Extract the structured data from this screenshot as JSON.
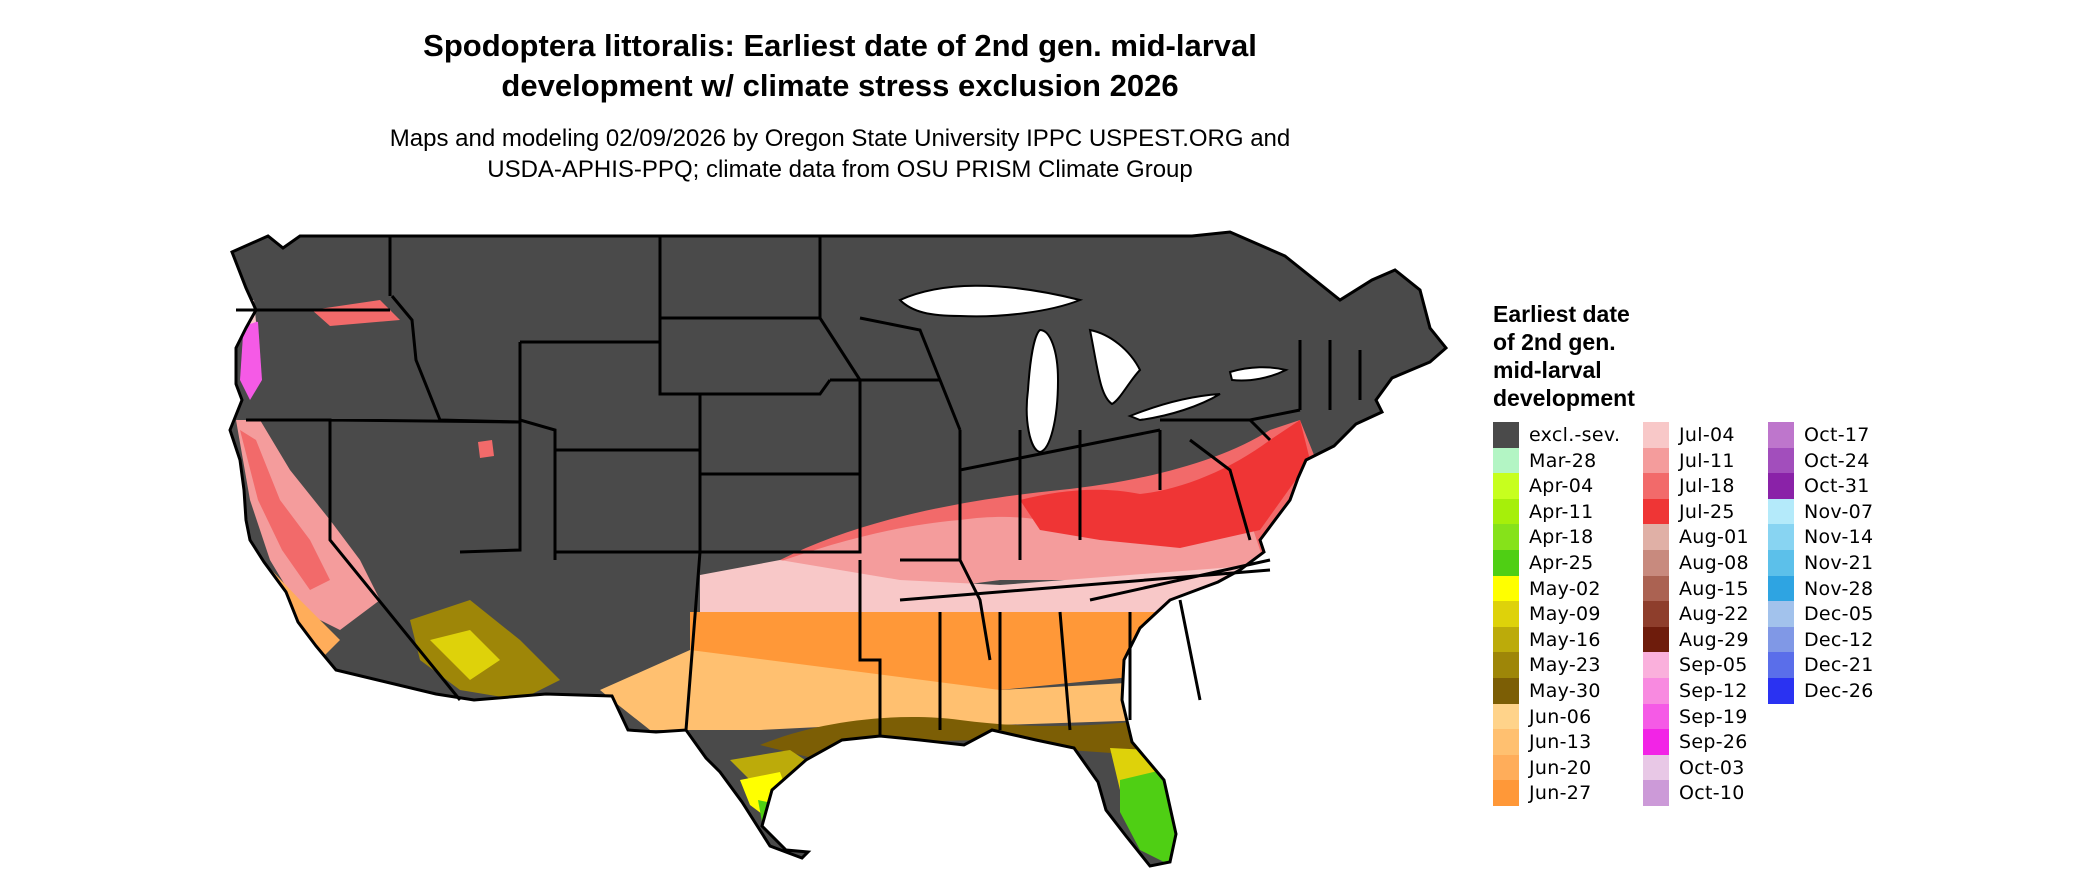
{
  "title_line1": "Spodoptera littoralis: Earliest date of 2nd gen. mid-larval",
  "title_line2": "development w/ climate stress exclusion 2026",
  "subtitle_line1": "Maps and modeling 02/09/2026 by Oregon State University IPPC USPEST.ORG and",
  "subtitle_line2": "USDA-APHIS-PPQ; climate data from OSU PRISM Climate Group",
  "legend": {
    "title_lines": [
      "Earliest date",
      "of 2nd gen.",
      "mid-larval",
      "development"
    ],
    "columns": [
      [
        {
          "label": "excl.-sev.",
          "color": "#4a4a4a"
        },
        {
          "label": "Mar-28",
          "color": "#b3f5c4"
        },
        {
          "label": "Apr-04",
          "color": "#c7ff1e"
        },
        {
          "label": "Apr-11",
          "color": "#a6ef0a"
        },
        {
          "label": "Apr-18",
          "color": "#86e21a"
        },
        {
          "label": "Apr-25",
          "color": "#4fcf14"
        },
        {
          "label": "May-02",
          "color": "#ffff00"
        },
        {
          "label": "May-09",
          "color": "#ded20a"
        },
        {
          "label": "May-16",
          "color": "#bcab0a"
        },
        {
          "label": "May-23",
          "color": "#9e8608"
        },
        {
          "label": "May-30",
          "color": "#7c5e05"
        },
        {
          "label": "Jun-06",
          "color": "#ffd38a"
        },
        {
          "label": "Jun-13",
          "color": "#ffc070"
        },
        {
          "label": "Jun-20",
          "color": "#ffad5a"
        },
        {
          "label": "Jun-27",
          "color": "#ff9838"
        }
      ],
      [
        {
          "label": "Jul-04",
          "color": "#f8c8c8"
        },
        {
          "label": "Jul-11",
          "color": "#f49c9c"
        },
        {
          "label": "Jul-18",
          "color": "#f26a6a"
        },
        {
          "label": "Jul-25",
          "color": "#ef3535"
        },
        {
          "label": "Aug-01",
          "color": "#e0b0a6"
        },
        {
          "label": "Aug-08",
          "color": "#c88a7e"
        },
        {
          "label": "Aug-15",
          "color": "#ab6252"
        },
        {
          "label": "Aug-22",
          "color": "#8e3e2c"
        },
        {
          "label": "Aug-29",
          "color": "#6e1c0c"
        },
        {
          "label": "Sep-05",
          "color": "#fab0dc"
        },
        {
          "label": "Sep-12",
          "color": "#f88ae0"
        },
        {
          "label": "Sep-19",
          "color": "#f55ae6"
        },
        {
          "label": "Sep-26",
          "color": "#f224e6"
        },
        {
          "label": "Oct-03",
          "color": "#e8c8e6"
        },
        {
          "label": "Oct-10",
          "color": "#cc9ad8"
        }
      ],
      [
        {
          "label": "Oct-17",
          "color": "#be76cc"
        },
        {
          "label": "Oct-24",
          "color": "#a24ebc"
        },
        {
          "label": "Oct-31",
          "color": "#8a22a8"
        },
        {
          "label": "Nov-07",
          "color": "#b4eafa"
        },
        {
          "label": "Nov-14",
          "color": "#88d4f2"
        },
        {
          "label": "Nov-21",
          "color": "#5cc0ea"
        },
        {
          "label": "Nov-28",
          "color": "#2ea4e2"
        },
        {
          "label": "Dec-05",
          "color": "#a2c2ec"
        },
        {
          "label": "Dec-12",
          "color": "#8098e6"
        },
        {
          "label": "Dec-21",
          "color": "#5a6eea"
        },
        {
          "label": "Dec-26",
          "color": "#2a32f2"
        }
      ]
    ]
  },
  "map_colors": {
    "excluded": "#4a4a4a",
    "border": "#000000",
    "water": "#ffffff"
  }
}
